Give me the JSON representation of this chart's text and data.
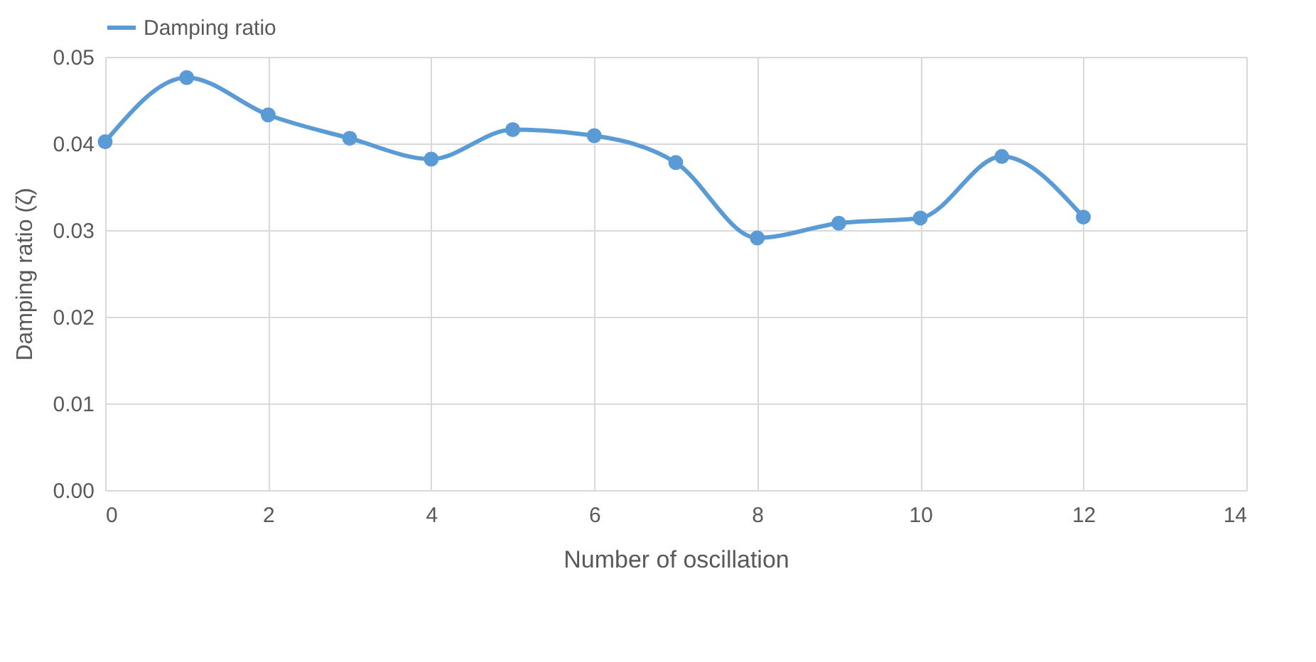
{
  "chart_data": {
    "type": "line",
    "xlabel": "Number of oscillation",
    "ylabel": "Damping ratio (ζ)",
    "x": [
      0,
      1,
      2,
      3,
      4,
      5,
      6,
      7,
      8,
      9,
      10,
      11,
      12
    ],
    "series": [
      {
        "name": "Damping ratio",
        "color": "#5b9bd5",
        "values": [
          0.0402,
          0.0476,
          0.0433,
          0.0406,
          0.0382,
          0.0416,
          0.0409,
          0.0378,
          0.0291,
          0.0308,
          0.0314,
          0.0385,
          0.0315
        ]
      }
    ],
    "xlim": [
      0,
      14
    ],
    "xticks": [
      0,
      2,
      4,
      6,
      8,
      10,
      12,
      14
    ],
    "ylim": [
      0,
      0.05
    ],
    "yticks": [
      {
        "value": 0,
        "label": "0.00"
      },
      {
        "value": 0.01,
        "label": "0.01"
      },
      {
        "value": 0.02,
        "label": "0.02"
      },
      {
        "value": 0.03,
        "label": "0.03"
      },
      {
        "value": 0.04,
        "label": "0.04"
      },
      {
        "value": 0.05,
        "label": "0.05"
      }
    ],
    "grid": true,
    "legend": "top",
    "marker": "circle",
    "line_style": "solid"
  }
}
